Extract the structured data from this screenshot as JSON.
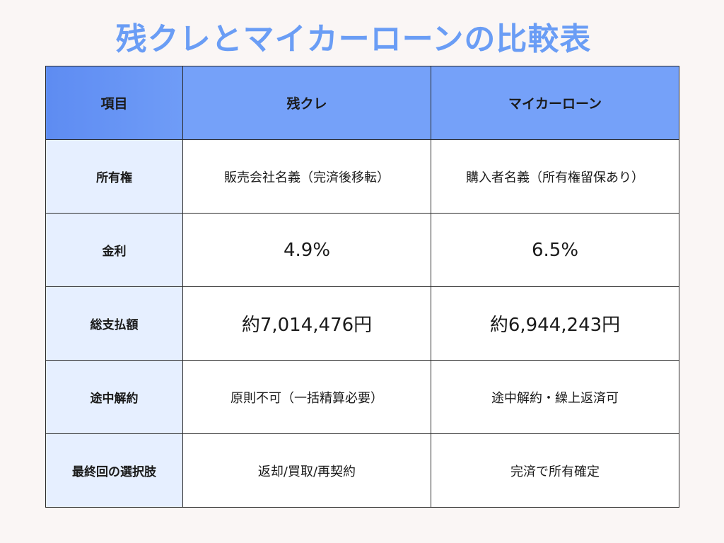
{
  "title": "残クレとマイカーローンの比較表",
  "table": {
    "headers": [
      "項目",
      "残クレ",
      "マイカーローン"
    ],
    "rows": [
      {
        "label": "所有権",
        "zancre": "販売会社名義（完済後移転）",
        "loan": "購入者名義（所有権留保あり）"
      },
      {
        "label": "金利",
        "zancre": "4.9%",
        "loan": "6.5%"
      },
      {
        "label": "総支払額",
        "zancre": "約7,014,476円",
        "loan": "約6,944,243円"
      },
      {
        "label": "途中解約",
        "zancre": "原則不可（一括精算必要）",
        "loan": "途中解約・繰上返済可"
      },
      {
        "label": "最終回の選択肢",
        "zancre": "返却/買取/再契約",
        "loan": "完済で所有確定"
      }
    ]
  },
  "colors": {
    "title": "#6a9df5",
    "header_bg": "#75a1f9",
    "label_bg": "#e6efff",
    "page_bg": "#faf6f5"
  }
}
